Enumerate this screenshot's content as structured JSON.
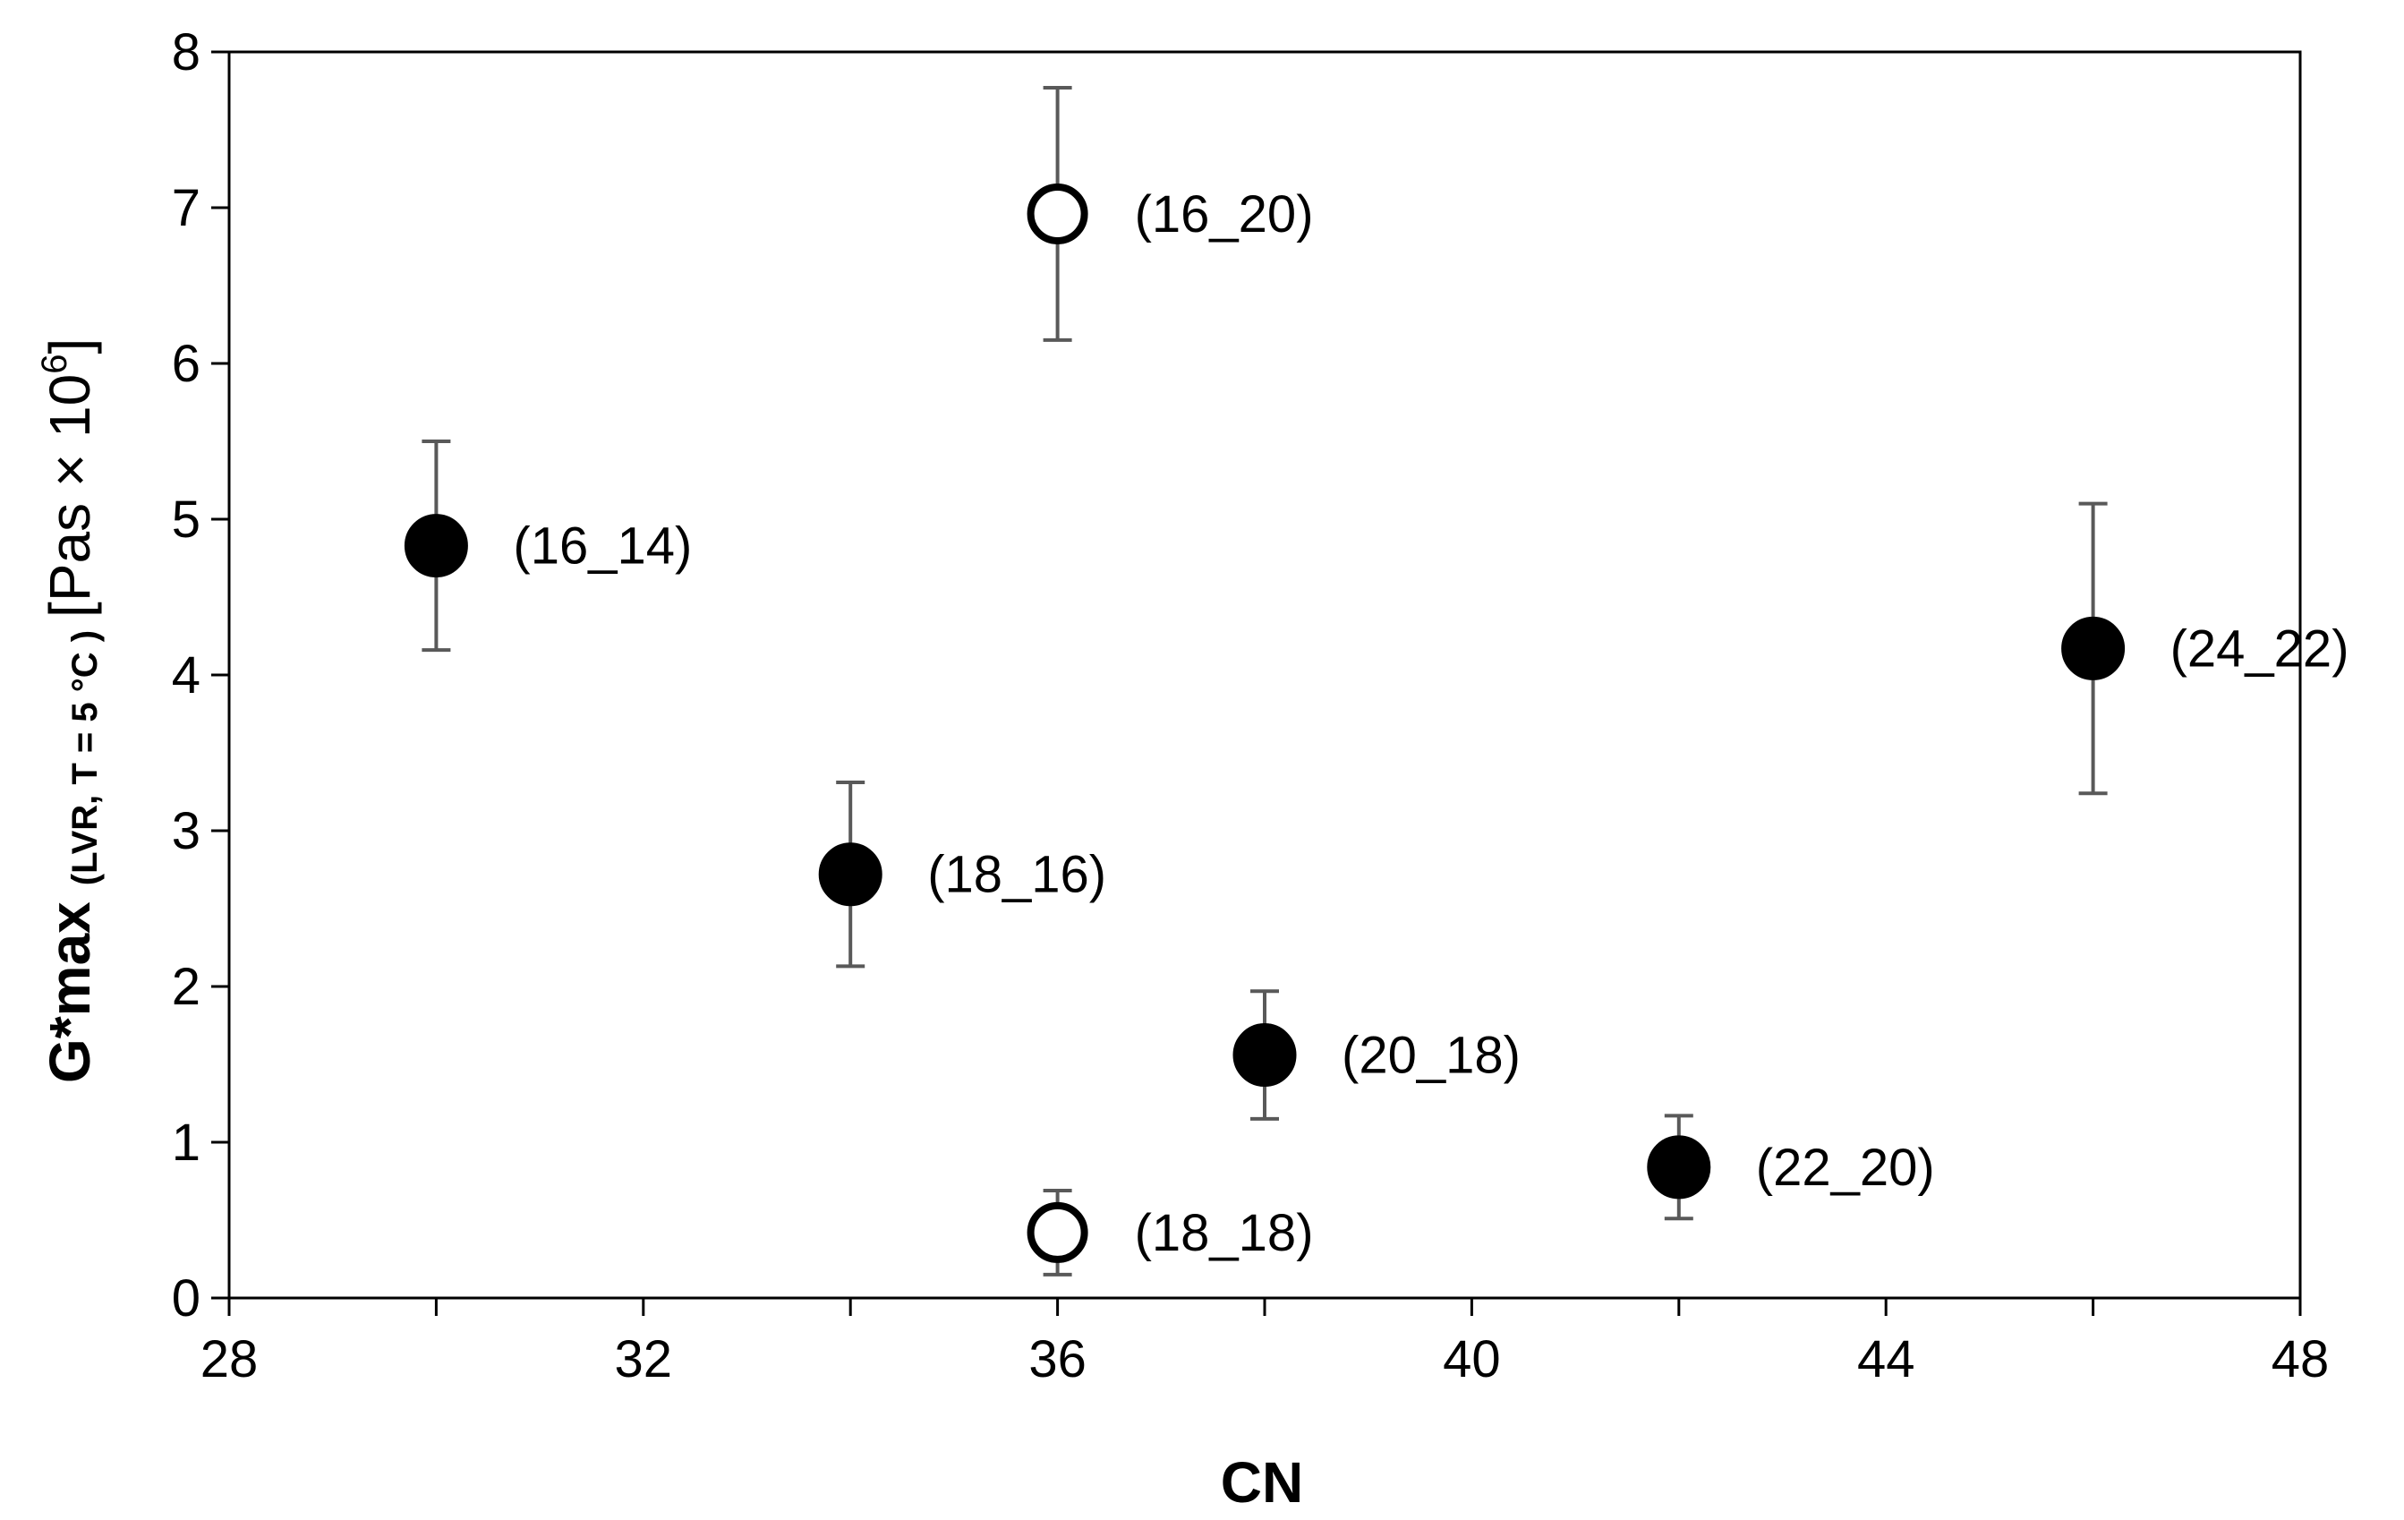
{
  "chart_data": {
    "type": "scatter",
    "xlabel": "CN",
    "ylabel": {
      "main": "G*max",
      "subscript": "(LVR, T = 5 °C )",
      "unit_open": "[Pas × 10",
      "unit_sup": "6",
      "unit_close": "]"
    },
    "xlim": [
      28,
      48
    ],
    "ylim": [
      0,
      8
    ],
    "x_ticks": [
      "28",
      "32",
      "36",
      "40",
      "44",
      "48"
    ],
    "y_ticks": [
      "0",
      "1",
      "2",
      "3",
      "4",
      "5",
      "6",
      "7",
      "8"
    ],
    "grid": false,
    "points": [
      {
        "x": 30,
        "y": 4.83,
        "err": 0.67,
        "label": "(16_14)",
        "filled": true
      },
      {
        "x": 34,
        "y": 2.72,
        "err": 0.59,
        "label": "(18_16)",
        "filled": true
      },
      {
        "x": 36,
        "y": 6.96,
        "err": 0.81,
        "label": "(16_20)",
        "filled": false
      },
      {
        "x": 36,
        "y": 0.42,
        "err": 0.27,
        "label": "(18_18)",
        "filled": false
      },
      {
        "x": 38,
        "y": 1.56,
        "err": 0.41,
        "label": "(20_18)",
        "filled": true
      },
      {
        "x": 42,
        "y": 0.84,
        "err": 0.33,
        "label": "(22_20)",
        "filled": true
      },
      {
        "x": 46,
        "y": 4.17,
        "err": 0.93,
        "label": "(24_22)",
        "filled": true
      }
    ],
    "colors": {
      "marker": "#000000",
      "errorbar": "#595959",
      "axis": "#000000"
    }
  }
}
